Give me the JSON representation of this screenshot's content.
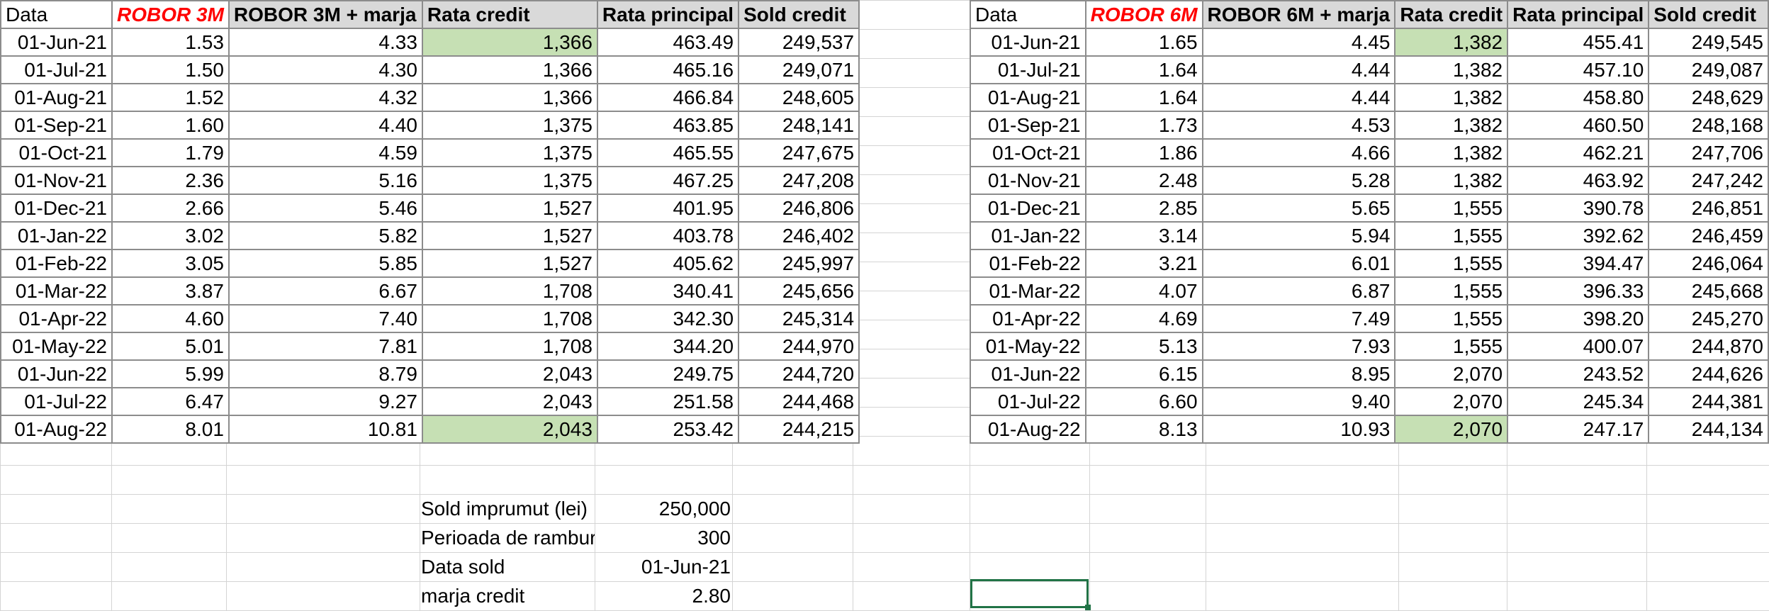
{
  "table_left": {
    "headers": [
      "Data",
      "ROBOR 3M",
      "ROBOR 3M + marja",
      "Rata credit",
      "Rata principal",
      "Sold credit"
    ],
    "rows": [
      [
        "01-Jun-21",
        "1.53",
        "4.33",
        "1,366",
        "463.49",
        "249,537"
      ],
      [
        "01-Jul-21",
        "1.50",
        "4.30",
        "1,366",
        "465.16",
        "249,071"
      ],
      [
        "01-Aug-21",
        "1.52",
        "4.32",
        "1,366",
        "466.84",
        "248,605"
      ],
      [
        "01-Sep-21",
        "1.60",
        "4.40",
        "1,375",
        "463.85",
        "248,141"
      ],
      [
        "01-Oct-21",
        "1.79",
        "4.59",
        "1,375",
        "465.55",
        "247,675"
      ],
      [
        "01-Nov-21",
        "2.36",
        "5.16",
        "1,375",
        "467.25",
        "247,208"
      ],
      [
        "01-Dec-21",
        "2.66",
        "5.46",
        "1,527",
        "401.95",
        "246,806"
      ],
      [
        "01-Jan-22",
        "3.02",
        "5.82",
        "1,527",
        "403.78",
        "246,402"
      ],
      [
        "01-Feb-22",
        "3.05",
        "5.85",
        "1,527",
        "405.62",
        "245,997"
      ],
      [
        "01-Mar-22",
        "3.87",
        "6.67",
        "1,708",
        "340.41",
        "245,656"
      ],
      [
        "01-Apr-22",
        "4.60",
        "7.40",
        "1,708",
        "342.30",
        "245,314"
      ],
      [
        "01-May-22",
        "5.01",
        "7.81",
        "1,708",
        "344.20",
        "244,970"
      ],
      [
        "01-Jun-22",
        "5.99",
        "8.79",
        "2,043",
        "249.75",
        "244,720"
      ],
      [
        "01-Jul-22",
        "6.47",
        "9.27",
        "2,043",
        "251.58",
        "244,468"
      ],
      [
        "01-Aug-22",
        "8.01",
        "10.81",
        "2,043",
        "253.42",
        "244,215"
      ]
    ]
  },
  "table_right": {
    "headers": [
      "Data",
      "ROBOR 6M",
      "ROBOR 6M + marja",
      "Rata credit",
      "Rata principal",
      "Sold credit"
    ],
    "rows": [
      [
        "01-Jun-21",
        "1.65",
        "4.45",
        "1,382",
        "455.41",
        "249,545"
      ],
      [
        "01-Jul-21",
        "1.64",
        "4.44",
        "1,382",
        "457.10",
        "249,087"
      ],
      [
        "01-Aug-21",
        "1.64",
        "4.44",
        "1,382",
        "458.80",
        "248,629"
      ],
      [
        "01-Sep-21",
        "1.73",
        "4.53",
        "1,382",
        "460.50",
        "248,168"
      ],
      [
        "01-Oct-21",
        "1.86",
        "4.66",
        "1,382",
        "462.21",
        "247,706"
      ],
      [
        "01-Nov-21",
        "2.48",
        "5.28",
        "1,382",
        "463.92",
        "247,242"
      ],
      [
        "01-Dec-21",
        "2.85",
        "5.65",
        "1,555",
        "390.78",
        "246,851"
      ],
      [
        "01-Jan-22",
        "3.14",
        "5.94",
        "1,555",
        "392.62",
        "246,459"
      ],
      [
        "01-Feb-22",
        "3.21",
        "6.01",
        "1,555",
        "394.47",
        "246,064"
      ],
      [
        "01-Mar-22",
        "4.07",
        "6.87",
        "1,555",
        "396.33",
        "245,668"
      ],
      [
        "01-Apr-22",
        "4.69",
        "7.49",
        "1,555",
        "398.20",
        "245,270"
      ],
      [
        "01-May-22",
        "5.13",
        "7.93",
        "1,555",
        "400.07",
        "244,870"
      ],
      [
        "01-Jun-22",
        "6.15",
        "8.95",
        "2,070",
        "243.52",
        "244,626"
      ],
      [
        "01-Jul-22",
        "6.60",
        "9.40",
        "2,070",
        "245.34",
        "244,381"
      ],
      [
        "01-Aug-22",
        "8.13",
        "10.93",
        "2,070",
        "247.17",
        "244,134"
      ]
    ]
  },
  "parameters": [
    {
      "label": "Sold imprumut (lei)",
      "value": "250,000"
    },
    {
      "label": "Perioada de rambursare",
      "value": "300"
    },
    {
      "label": "Data sold",
      "value": "01-Jun-21"
    },
    {
      "label": "marja credit",
      "value": "2.80"
    }
  ],
  "colors": {
    "robor_header": "#ff0000",
    "highlight_fill": "#c6e0b4",
    "header_fill": "#d9d9d9",
    "selection_border": "#217346"
  }
}
